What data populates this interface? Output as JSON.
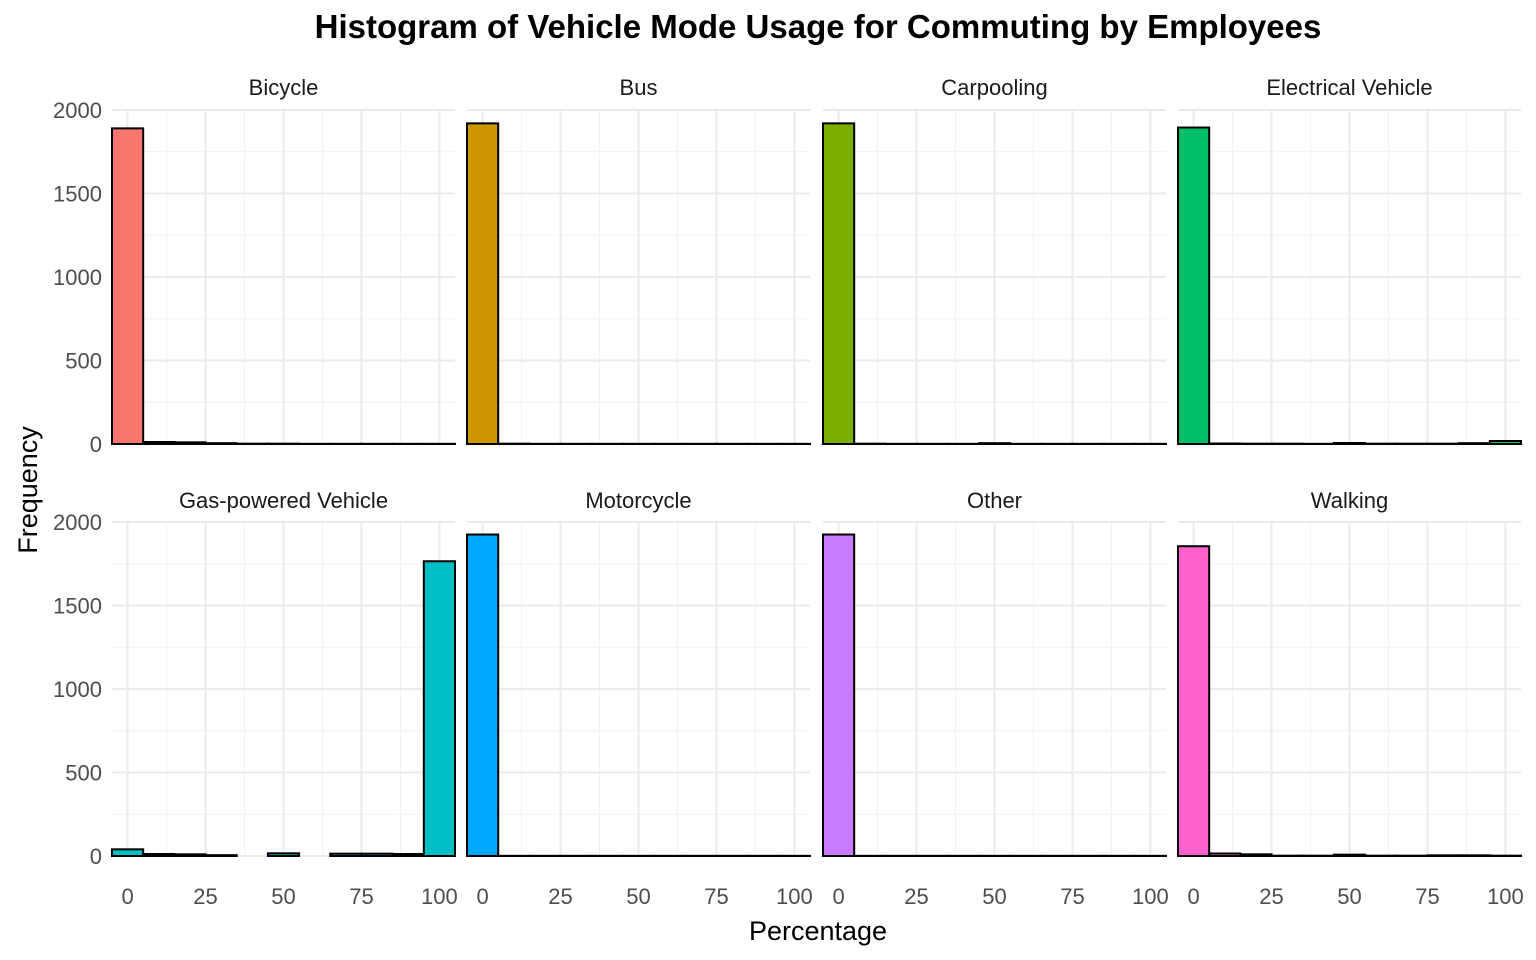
{
  "chart_data": {
    "type": "bar",
    "title": "Histogram of Vehicle Mode Usage for Commuting by Employees",
    "xlabel": "Percentage",
    "ylabel": "Frequency",
    "xlim": [
      -5,
      105
    ],
    "ylim": [
      0,
      2000
    ],
    "x_ticks": [
      0,
      25,
      50,
      75,
      100
    ],
    "y_ticks": [
      0,
      500,
      1000,
      1500,
      2000
    ],
    "bin_width": 10,
    "bins": [
      0,
      10,
      20,
      30,
      40,
      50,
      60,
      70,
      80,
      90,
      100
    ],
    "grid": true,
    "legend": "none",
    "layout": "2 rows x 4 columns facets",
    "panels": [
      {
        "name": "Bicycle",
        "color": "#F8766D",
        "values": [
          1890,
          12,
          10,
          5,
          2,
          2,
          1,
          1,
          1,
          1,
          1
        ]
      },
      {
        "name": "Bus",
        "color": "#CD9600",
        "values": [
          1920,
          2,
          1,
          1,
          1,
          1,
          1,
          1,
          1,
          1,
          1
        ]
      },
      {
        "name": "Carpooling",
        "color": "#7CAE00",
        "values": [
          1920,
          2,
          1,
          1,
          1,
          5,
          1,
          1,
          1,
          1,
          1
        ]
      },
      {
        "name": "Electrical Vehicle",
        "color": "#00BE67",
        "values": [
          1895,
          3,
          2,
          2,
          1,
          6,
          2,
          2,
          2,
          5,
          18
        ]
      },
      {
        "name": "Gas-powered Vehicle",
        "color": "#00BFC4",
        "values": [
          40,
          12,
          10,
          5,
          0,
          16,
          0,
          14,
          14,
          12,
          1765
        ]
      },
      {
        "name": "Motorcycle",
        "color": "#00A9FF",
        "values": [
          1925,
          1,
          1,
          1,
          1,
          1,
          1,
          1,
          1,
          1,
          1
        ]
      },
      {
        "name": "Other",
        "color": "#C77CFF",
        "values": [
          1925,
          1,
          1,
          1,
          1,
          1,
          1,
          1,
          1,
          1,
          1
        ]
      },
      {
        "name": "Walking",
        "color": "#FF61CC",
        "values": [
          1855,
          15,
          10,
          2,
          2,
          8,
          2,
          2,
          4,
          4,
          2
        ]
      }
    ]
  }
}
